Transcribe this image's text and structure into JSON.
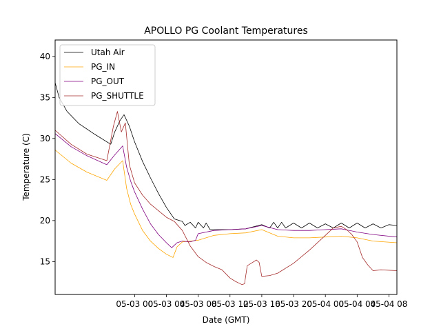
{
  "chart_data": {
    "type": "line",
    "title": "APOLLO PG Coolant Temperatures",
    "xlabel": "Date (GMT)",
    "ylabel": "Temperature (C)",
    "xlim": [
      "2019-05-02 14:00",
      "2019-05-04 09:00"
    ],
    "ylim": [
      11,
      42
    ],
    "x_ticks": [
      {
        "value": "2019-05-03 00:00",
        "label": "05-03 00"
      },
      {
        "value": "2019-05-03 04:00",
        "label": "05-03 04"
      },
      {
        "value": "2019-05-03 08:00",
        "label": "05-03 08"
      },
      {
        "value": "2019-05-03 12:00",
        "label": "05-03 12"
      },
      {
        "value": "2019-05-03 16:00",
        "label": "05-03 16"
      },
      {
        "value": "2019-05-03 20:00",
        "label": "05-03 20"
      },
      {
        "value": "2019-05-04 00:00",
        "label": "05-04 00"
      },
      {
        "value": "2019-05-04 04:00",
        "label": "05-04 04"
      },
      {
        "value": "2019-05-04 08:00",
        "label": "05-04 08"
      }
    ],
    "y_ticks": [
      15,
      20,
      25,
      30,
      35,
      40
    ],
    "grid": false,
    "legend_position": "top-left",
    "series": [
      {
        "name": "Utah Air",
        "color": "#000000",
        "points": [
          [
            "2019-05-02 14:00",
            36.8
          ],
          [
            "2019-05-02 14:30",
            35.0
          ],
          [
            "2019-05-02 15:30",
            33.3
          ],
          [
            "2019-05-02 17:00",
            31.8
          ],
          [
            "2019-05-02 19:00",
            30.5
          ],
          [
            "2019-05-02 21:00",
            29.3
          ],
          [
            "2019-05-02 21:30",
            30.8
          ],
          [
            "2019-05-02 22:10",
            32.2
          ],
          [
            "2019-05-02 22:40",
            32.9
          ],
          [
            "2019-05-02 23:20",
            31.5
          ],
          [
            "2019-05-03 00:00",
            29.6
          ],
          [
            "2019-05-03 01:00",
            27.2
          ],
          [
            "2019-05-03 02:00",
            25.2
          ],
          [
            "2019-05-03 03:00",
            23.3
          ],
          [
            "2019-05-03 04:00",
            21.6
          ],
          [
            "2019-05-03 05:00",
            20.2
          ],
          [
            "2019-05-03 06:00",
            19.9
          ],
          [
            "2019-05-03 06:20",
            19.4
          ],
          [
            "2019-05-03 07:00",
            19.8
          ],
          [
            "2019-05-03 07:40",
            19.1
          ],
          [
            "2019-05-03 08:00",
            19.8
          ],
          [
            "2019-05-03 08:40",
            19.1
          ],
          [
            "2019-05-03 09:00",
            19.7
          ],
          [
            "2019-05-03 09:30",
            18.9
          ],
          [
            "2019-05-03 12:00",
            18.9
          ],
          [
            "2019-05-03 14:00",
            19.0
          ],
          [
            "2019-05-03 16:00",
            19.5
          ],
          [
            "2019-05-03 17:00",
            19.1
          ],
          [
            "2019-05-03 17:30",
            19.8
          ],
          [
            "2019-05-03 18:00",
            19.1
          ],
          [
            "2019-05-03 18:30",
            19.8
          ],
          [
            "2019-05-03 19:00",
            19.1
          ],
          [
            "2019-05-03 20:00",
            19.7
          ],
          [
            "2019-05-03 21:00",
            19.1
          ],
          [
            "2019-05-03 22:00",
            19.7
          ],
          [
            "2019-05-03 23:00",
            19.1
          ],
          [
            "2019-05-04 00:00",
            19.6
          ],
          [
            "2019-05-04 01:00",
            19.1
          ],
          [
            "2019-05-04 02:00",
            19.7
          ],
          [
            "2019-05-04 03:00",
            19.1
          ],
          [
            "2019-05-04 04:00",
            19.7
          ],
          [
            "2019-05-04 05:00",
            19.1
          ],
          [
            "2019-05-04 06:00",
            19.6
          ],
          [
            "2019-05-04 07:00",
            19.1
          ],
          [
            "2019-05-04 08:00",
            19.5
          ],
          [
            "2019-05-04 09:00",
            19.4
          ]
        ]
      },
      {
        "name": "PG_IN",
        "color": "#ffa500",
        "points": [
          [
            "2019-05-02 14:00",
            28.6
          ],
          [
            "2019-05-02 16:00",
            27.0
          ],
          [
            "2019-05-02 18:00",
            25.9
          ],
          [
            "2019-05-02 20:30",
            24.9
          ],
          [
            "2019-05-02 21:30",
            26.3
          ],
          [
            "2019-05-02 22:30",
            27.3
          ],
          [
            "2019-05-02 23:00",
            23.9
          ],
          [
            "2019-05-02 23:30",
            22.0
          ],
          [
            "2019-05-03 00:00",
            20.8
          ],
          [
            "2019-05-03 01:00",
            18.8
          ],
          [
            "2019-05-03 02:00",
            17.5
          ],
          [
            "2019-05-03 03:00",
            16.6
          ],
          [
            "2019-05-03 04:00",
            15.9
          ],
          [
            "2019-05-03 04:50",
            15.5
          ],
          [
            "2019-05-03 05:20",
            16.8
          ],
          [
            "2019-05-03 06:00",
            17.4
          ],
          [
            "2019-05-03 07:00",
            17.5
          ],
          [
            "2019-05-03 08:00",
            17.6
          ],
          [
            "2019-05-03 10:00",
            18.2
          ],
          [
            "2019-05-03 12:00",
            18.4
          ],
          [
            "2019-05-03 14:00",
            18.5
          ],
          [
            "2019-05-03 16:00",
            18.9
          ],
          [
            "2019-05-03 18:00",
            18.1
          ],
          [
            "2019-05-03 20:00",
            17.9
          ],
          [
            "2019-05-03 22:00",
            17.9
          ],
          [
            "2019-05-04 00:00",
            18.0
          ],
          [
            "2019-05-04 02:00",
            18.1
          ],
          [
            "2019-05-04 04:00",
            17.9
          ],
          [
            "2019-05-04 06:00",
            17.5
          ],
          [
            "2019-05-04 09:00",
            17.3
          ]
        ]
      },
      {
        "name": "PG_OUT",
        "color": "#800080",
        "points": [
          [
            "2019-05-02 14:00",
            30.6
          ],
          [
            "2019-05-02 16:00",
            29.0
          ],
          [
            "2019-05-02 18:00",
            27.9
          ],
          [
            "2019-05-02 20:30",
            26.8
          ],
          [
            "2019-05-02 21:30",
            28.0
          ],
          [
            "2019-05-02 22:30",
            29.1
          ],
          [
            "2019-05-02 23:00",
            26.5
          ],
          [
            "2019-05-02 23:30",
            24.8
          ],
          [
            "2019-05-03 00:00",
            23.5
          ],
          [
            "2019-05-03 01:00",
            21.4
          ],
          [
            "2019-05-03 02:00",
            19.6
          ],
          [
            "2019-05-03 03:00",
            18.3
          ],
          [
            "2019-05-03 04:00",
            17.3
          ],
          [
            "2019-05-03 04:40",
            16.7
          ],
          [
            "2019-05-03 05:20",
            17.3
          ],
          [
            "2019-05-03 06:00",
            17.5
          ],
          [
            "2019-05-03 07:00",
            17.4
          ],
          [
            "2019-05-03 07:40",
            17.6
          ],
          [
            "2019-05-03 08:00",
            18.4
          ],
          [
            "2019-05-03 10:00",
            18.8
          ],
          [
            "2019-05-03 12:00",
            18.9
          ],
          [
            "2019-05-03 14:00",
            19.0
          ],
          [
            "2019-05-03 16:00",
            19.4
          ],
          [
            "2019-05-03 18:00",
            18.9
          ],
          [
            "2019-05-03 20:00",
            18.8
          ],
          [
            "2019-05-03 22:00",
            18.8
          ],
          [
            "2019-05-04 00:00",
            18.9
          ],
          [
            "2019-05-04 02:00",
            19.0
          ],
          [
            "2019-05-04 04:00",
            18.6
          ],
          [
            "2019-05-04 06:00",
            18.3
          ],
          [
            "2019-05-04 09:00",
            18.0
          ]
        ]
      },
      {
        "name": "PG_SHUTTLE",
        "color": "#a52a2a",
        "points": [
          [
            "2019-05-02 14:00",
            31.0
          ],
          [
            "2019-05-02 16:00",
            29.3
          ],
          [
            "2019-05-02 18:00",
            28.1
          ],
          [
            "2019-05-02 20:30",
            27.3
          ],
          [
            "2019-05-02 21:20",
            31.5
          ],
          [
            "2019-05-02 21:50",
            33.3
          ],
          [
            "2019-05-02 22:20",
            30.8
          ],
          [
            "2019-05-02 22:50",
            31.9
          ],
          [
            "2019-05-02 23:20",
            26.8
          ],
          [
            "2019-05-03 00:00",
            24.6
          ],
          [
            "2019-05-03 01:00",
            23.1
          ],
          [
            "2019-05-03 02:00",
            22.0
          ],
          [
            "2019-05-03 03:00",
            21.2
          ],
          [
            "2019-05-03 04:00",
            20.4
          ],
          [
            "2019-05-03 05:00",
            19.9
          ],
          [
            "2019-05-03 06:00",
            18.8
          ],
          [
            "2019-05-03 07:00",
            16.9
          ],
          [
            "2019-05-03 08:00",
            15.6
          ],
          [
            "2019-05-03 09:00",
            14.9
          ],
          [
            "2019-05-03 10:00",
            14.4
          ],
          [
            "2019-05-03 11:00",
            14.0
          ],
          [
            "2019-05-03 12:00",
            13.0
          ],
          [
            "2019-05-03 12:40",
            12.6
          ],
          [
            "2019-05-03 13:30",
            12.2
          ],
          [
            "2019-05-03 13:50",
            12.3
          ],
          [
            "2019-05-03 14:10",
            14.5
          ],
          [
            "2019-05-03 14:40",
            14.8
          ],
          [
            "2019-05-03 15:20",
            15.2
          ],
          [
            "2019-05-03 15:40",
            14.9
          ],
          [
            "2019-05-03 16:00",
            13.2
          ],
          [
            "2019-05-03 17:00",
            13.3
          ],
          [
            "2019-05-03 18:00",
            13.6
          ],
          [
            "2019-05-03 20:00",
            14.8
          ],
          [
            "2019-05-03 22:00",
            16.4
          ],
          [
            "2019-05-04 00:00",
            18.2
          ],
          [
            "2019-05-04 01:00",
            19.1
          ],
          [
            "2019-05-04 02:00",
            19.3
          ],
          [
            "2019-05-04 02:40",
            18.9
          ],
          [
            "2019-05-04 03:20",
            18.3
          ],
          [
            "2019-05-04 04:00",
            17.4
          ],
          [
            "2019-05-04 04:40",
            15.5
          ],
          [
            "2019-05-04 05:20",
            14.6
          ],
          [
            "2019-05-04 06:00",
            13.9
          ],
          [
            "2019-05-04 07:00",
            14.0
          ],
          [
            "2019-05-04 09:00",
            13.9
          ]
        ]
      }
    ]
  }
}
